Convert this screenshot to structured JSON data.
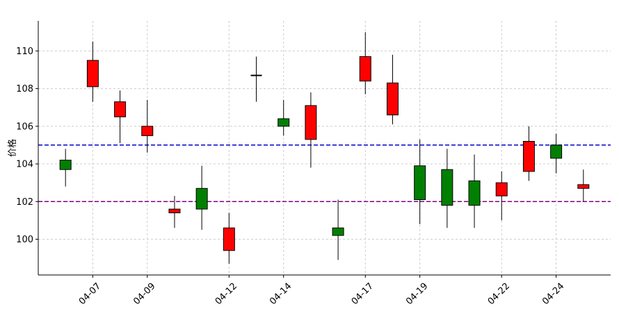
{
  "chart_data": {
    "type": "candlestick",
    "ylabel": "价格",
    "ylim": [
      98.1,
      111.6
    ],
    "yticks": [
      100,
      102,
      104,
      106,
      108,
      110
    ],
    "xticks": [
      {
        "date": "2024-04-07",
        "label": "04-07"
      },
      {
        "date": "2024-04-09",
        "label": "04-09"
      },
      {
        "date": "2024-04-12",
        "label": "04-12"
      },
      {
        "date": "2024-04-14",
        "label": "04-14"
      },
      {
        "date": "2024-04-17",
        "label": "04-17"
      },
      {
        "date": "2024-04-19",
        "label": "04-19"
      },
      {
        "date": "2024-04-22",
        "label": "04-22"
      },
      {
        "date": "2024-04-24",
        "label": "04-24"
      }
    ],
    "xlim": [
      "2024-04-05",
      "2024-04-26"
    ],
    "grid": true,
    "reference_lines": [
      {
        "y": 105.0,
        "color": "#0000cc",
        "style": "dashed"
      },
      {
        "y": 102.0,
        "color": "#800080",
        "style": "dashed"
      }
    ],
    "colors": {
      "up": "#008000",
      "down": "#ff0000",
      "neutral": "#000000"
    },
    "candles": [
      {
        "date": "2024-04-06",
        "open": 103.7,
        "high": 104.8,
        "low": 102.8,
        "close": 104.2
      },
      {
        "date": "2024-04-07",
        "open": 109.5,
        "high": 110.5,
        "low": 107.3,
        "close": 108.1
      },
      {
        "date": "2024-04-08",
        "open": 107.3,
        "high": 107.9,
        "low": 105.1,
        "close": 106.5
      },
      {
        "date": "2024-04-09",
        "open": 106.0,
        "high": 107.4,
        "low": 104.6,
        "close": 105.5
      },
      {
        "date": "2024-04-10",
        "open": 101.6,
        "high": 102.3,
        "low": 100.6,
        "close": 101.4
      },
      {
        "date": "2024-04-11",
        "open": 101.6,
        "high": 103.9,
        "low": 100.5,
        "close": 102.7
      },
      {
        "date": "2024-04-12",
        "open": 100.6,
        "high": 101.4,
        "low": 98.7,
        "close": 99.4
      },
      {
        "date": "2024-04-13",
        "open": 108.7,
        "high": 109.7,
        "low": 107.3,
        "close": 108.7
      },
      {
        "date": "2024-04-14",
        "open": 106.0,
        "high": 107.4,
        "low": 105.5,
        "close": 106.4
      },
      {
        "date": "2024-04-15",
        "open": 107.1,
        "high": 107.8,
        "low": 103.8,
        "close": 105.3
      },
      {
        "date": "2024-04-16",
        "open": 100.2,
        "high": 102.1,
        "low": 98.9,
        "close": 100.6
      },
      {
        "date": "2024-04-17",
        "open": 109.7,
        "high": 111.0,
        "low": 107.7,
        "close": 108.4
      },
      {
        "date": "2024-04-18",
        "open": 108.3,
        "high": 109.8,
        "low": 106.1,
        "close": 106.6
      },
      {
        "date": "2024-04-19",
        "open": 102.1,
        "high": 105.3,
        "low": 100.8,
        "close": 103.9
      },
      {
        "date": "2024-04-20",
        "open": 101.8,
        "high": 104.8,
        "low": 100.6,
        "close": 103.7
      },
      {
        "date": "2024-04-21",
        "open": 101.8,
        "high": 104.5,
        "low": 100.6,
        "close": 103.1
      },
      {
        "date": "2024-04-22",
        "open": 103.0,
        "high": 103.6,
        "low": 101.0,
        "close": 102.3
      },
      {
        "date": "2024-04-23",
        "open": 105.2,
        "high": 106.0,
        "low": 103.1,
        "close": 103.6
      },
      {
        "date": "2024-04-24",
        "open": 104.3,
        "high": 105.6,
        "low": 103.5,
        "close": 105.0
      },
      {
        "date": "2024-04-25",
        "open": 102.9,
        "high": 103.7,
        "low": 102.0,
        "close": 102.7
      }
    ]
  }
}
